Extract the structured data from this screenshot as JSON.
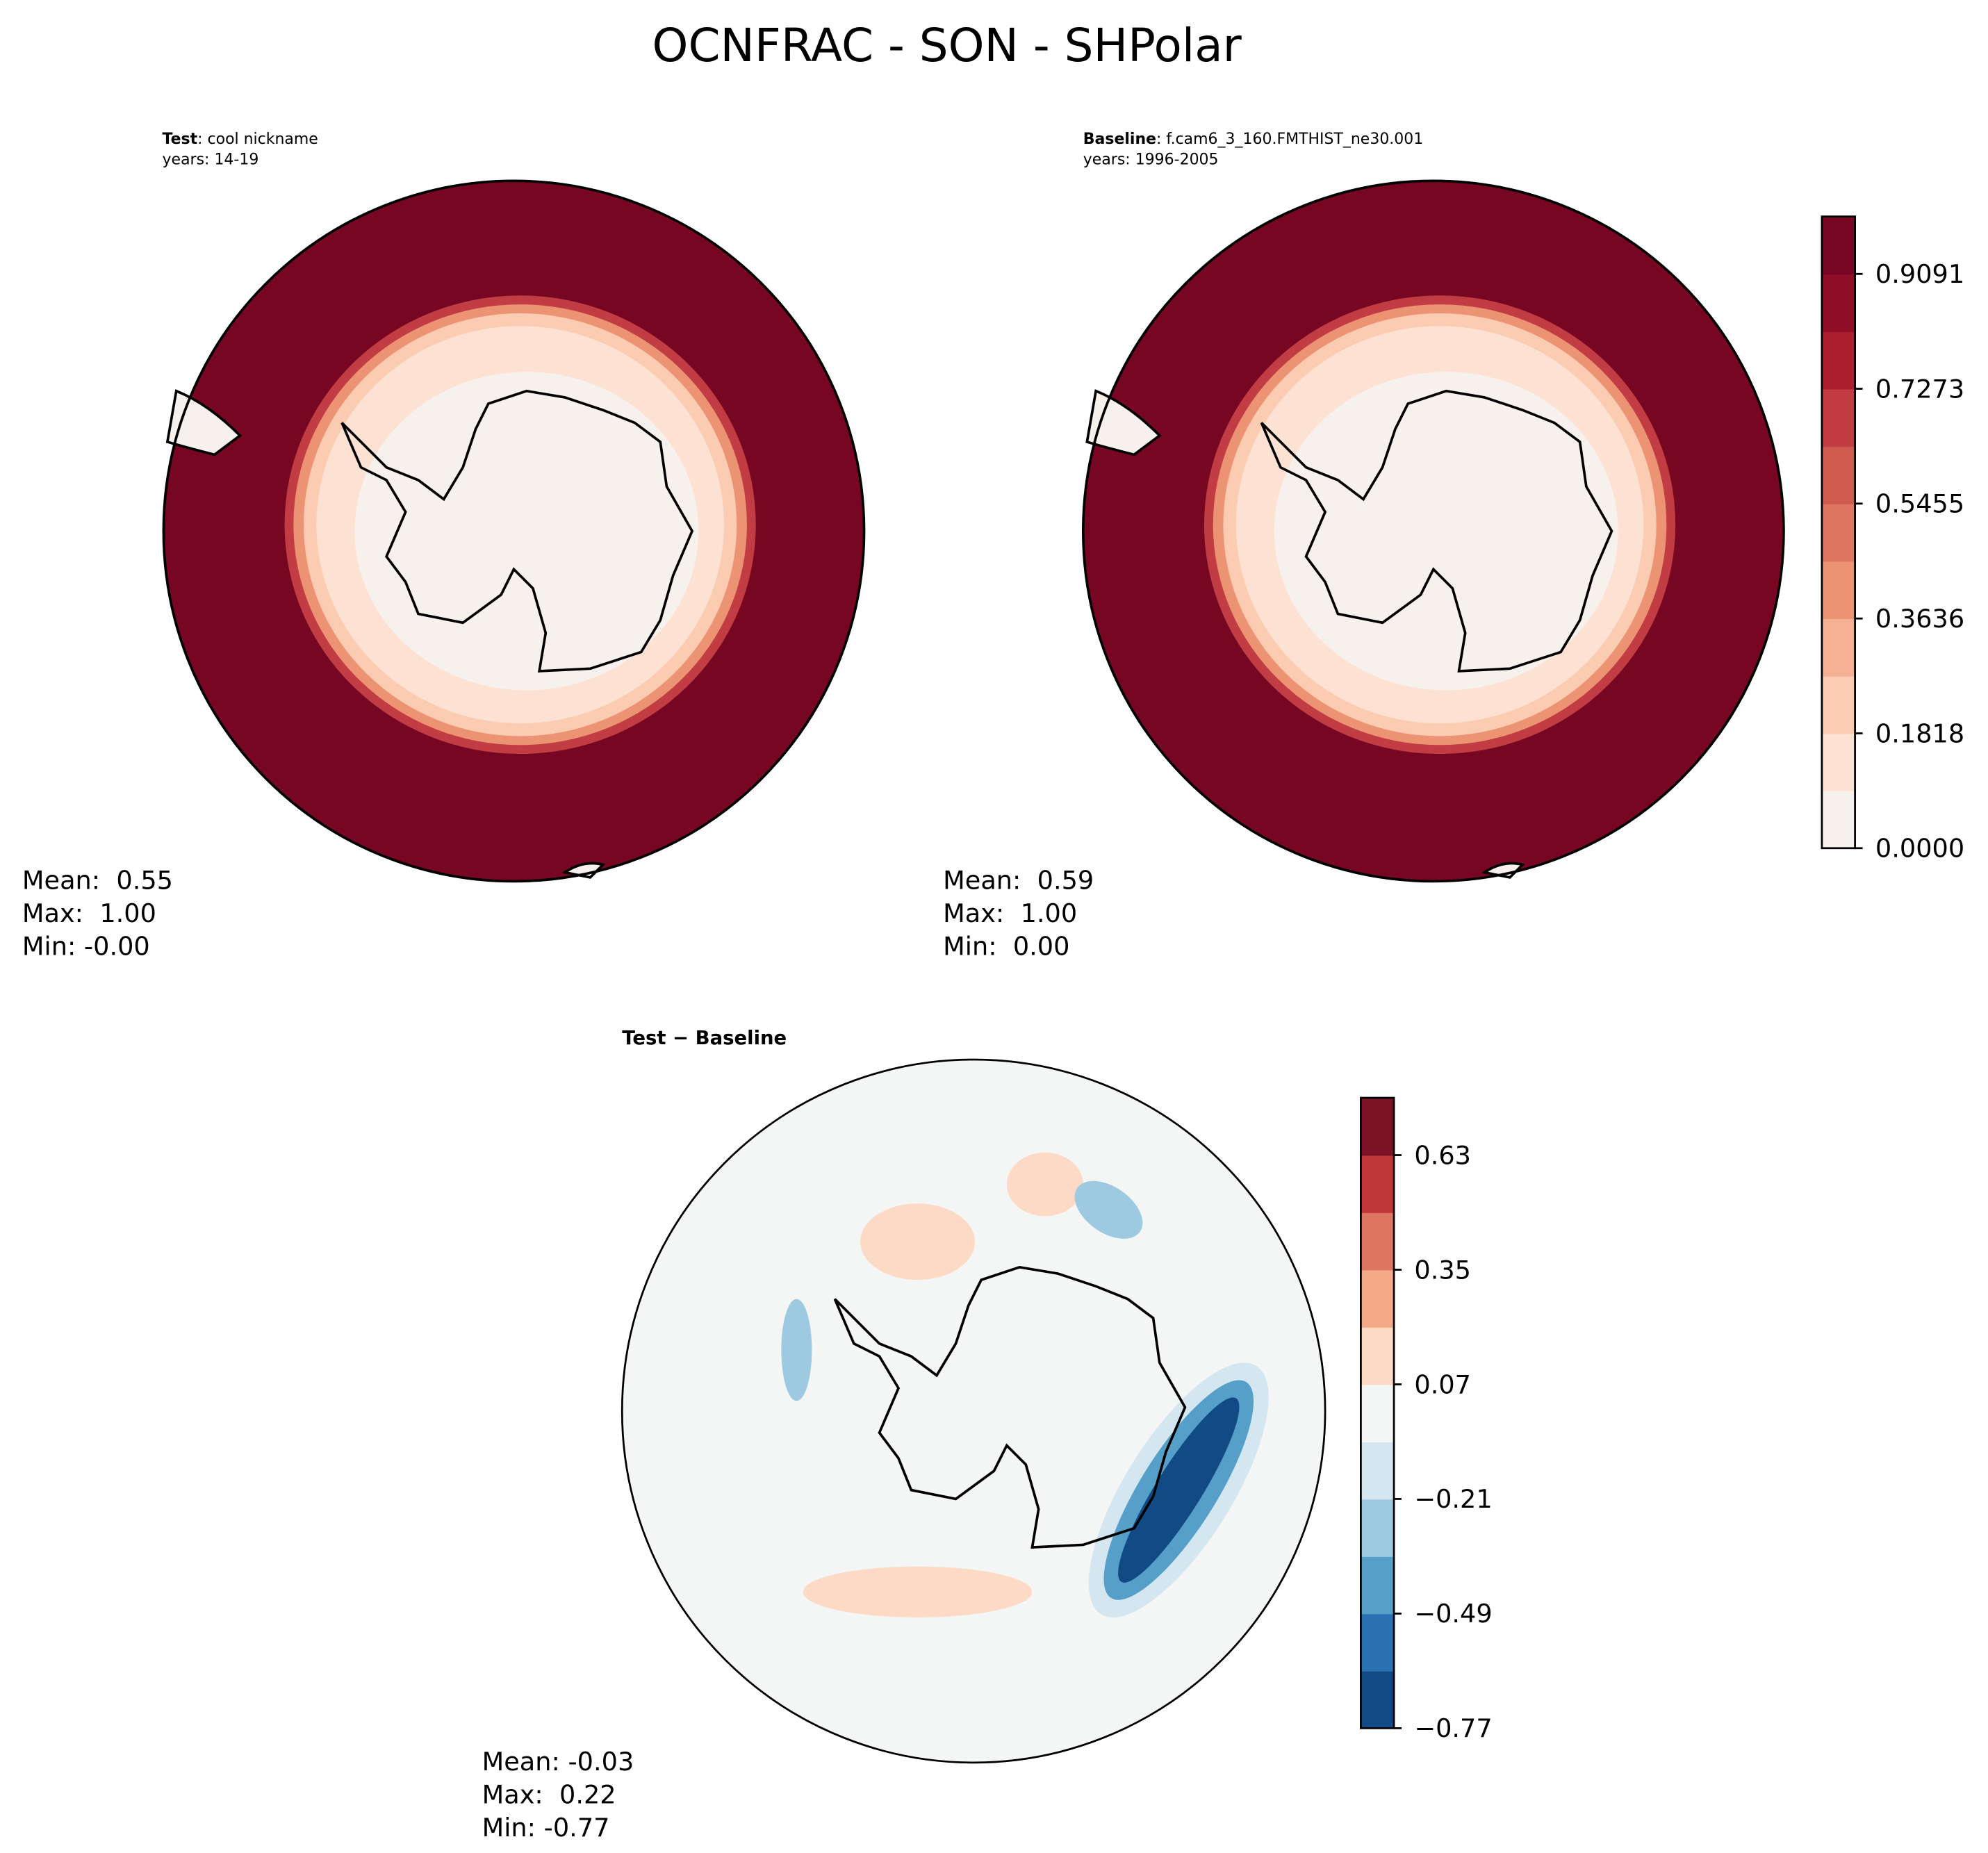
{
  "title": "OCNFRAC - SON - SHPolar",
  "panels": [
    {
      "name": "Test",
      "case": ": cool nickname",
      "years": "years: 14-19",
      "stats": [
        "Mean:  0.55",
        "Max:  1.00",
        "Min: -0.00"
      ]
    },
    {
      "name": "Baseline",
      "case": ": f.cam6_3_160.FMTHIST_ne30.001",
      "years": "years: 1996-2005",
      "stats": [
        "Mean:  0.59",
        "Max:  1.00",
        "Min:  0.00"
      ]
    },
    {
      "name": "Test − Baseline",
      "stats": [
        "Mean: -0.03",
        "Max:  0.22",
        "Min: -0.77"
      ]
    }
  ],
  "colorbars": [
    {
      "lim": [
        0,
        1
      ],
      "ticks": [
        {
          "value": 0,
          "label": "0.0000"
        },
        {
          "value": 0.1818,
          "label": "0.1818"
        },
        {
          "value": 0.3636,
          "label": "0.3636"
        },
        {
          "value": 0.5455,
          "label": "0.5455"
        },
        {
          "value": 0.7273,
          "label": "0.7273"
        },
        {
          "value": 0.9091,
          "label": "0.9091"
        }
      ],
      "colors": [
        "#f7f1ee",
        "#fde2d4",
        "#fbcbb2",
        "#f6b093",
        "#ec9373",
        "#de7560",
        "#cf5a4e",
        "#c13c43",
        "#ac1e30",
        "#900d27",
        "#760622"
      ]
    },
    {
      "lim": [
        -0.77,
        0.77
      ],
      "ticks": [
        {
          "value": -0.77,
          "label": "−0.77"
        },
        {
          "value": -0.49,
          "label": "−0.49"
        },
        {
          "value": -0.21,
          "label": "−0.21"
        },
        0.07,
        0.35,
        0.63
      ],
      "colors": [
        "#124a86",
        "#2a71b2",
        "#569fc9",
        "#9dcae1",
        "#d4e6f0",
        "#f4f6f6",
        "#fcdac6",
        "#f4a988",
        "#de7560",
        "#c13639",
        "#7b1226"
      ]
    }
  ]
}
